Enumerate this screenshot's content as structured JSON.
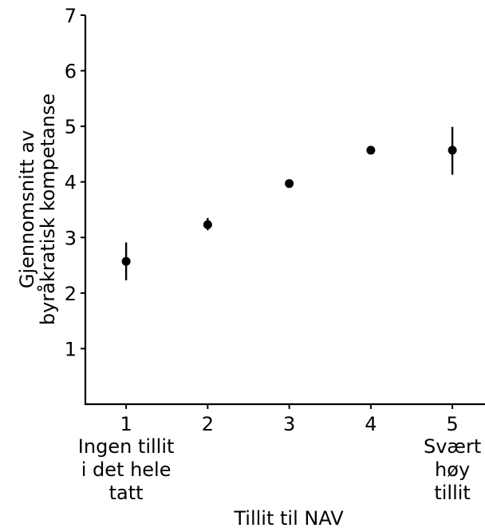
{
  "chart_data": {
    "type": "scatter",
    "title": "",
    "xlabel": "Tillit til NAV",
    "ylabel_lines": [
      "Gjennomsnitt av",
      "byråkratisk kompetanse"
    ],
    "x": [
      1,
      2,
      3,
      4,
      5
    ],
    "y": [
      2.57,
      3.23,
      3.97,
      4.57,
      4.57
    ],
    "error_low": [
      2.23,
      3.13,
      3.97,
      4.57,
      4.13
    ],
    "error_high": [
      2.91,
      3.35,
      3.97,
      4.57,
      4.99
    ],
    "xticks": [
      "1",
      "2",
      "3",
      "4",
      "5"
    ],
    "yticks": [
      "1",
      "2",
      "3",
      "4",
      "5",
      "6",
      "7"
    ],
    "xlim": [
      0.5,
      5.4
    ],
    "ylim": [
      0.0,
      7.0
    ],
    "category_labels": [
      {
        "x": 1,
        "lines": [
          "Ingen tillit",
          "i det hele",
          "tatt"
        ]
      },
      {
        "x": 5,
        "lines": [
          "Svært",
          "høy",
          "tillit"
        ]
      }
    ],
    "point_color": "#000000",
    "grid": false
  }
}
